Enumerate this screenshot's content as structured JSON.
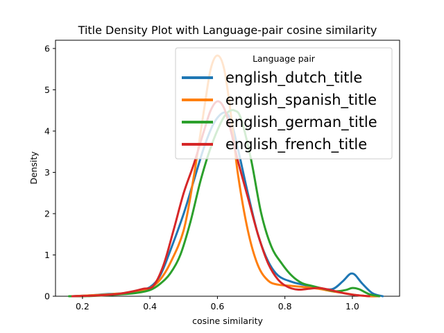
{
  "chart_data": {
    "type": "line",
    "title": "Title Density Plot with Language-pair cosine similarity",
    "xlabel": "cosine similarity",
    "ylabel": "Density",
    "xlim": [
      0.12,
      1.14
    ],
    "ylim": [
      0,
      6.2
    ],
    "x_ticks": [
      0.2,
      0.4,
      0.6,
      0.8,
      1.0
    ],
    "x_tick_labels": [
      "0.2",
      "0.4",
      "0.6",
      "0.8",
      "1.0"
    ],
    "y_ticks": [
      0,
      1,
      2,
      3,
      4,
      5,
      6
    ],
    "y_tick_labels": [
      "0",
      "1",
      "2",
      "3",
      "4",
      "5",
      "6"
    ],
    "grid": false,
    "legend": {
      "title": "Language pair",
      "placement": "upper-right"
    },
    "series": [
      {
        "name": "english_dutch_title",
        "color": "#1f77b4",
        "x": [
          0.17,
          0.22,
          0.27,
          0.3,
          0.33,
          0.36,
          0.4,
          0.43,
          0.46,
          0.5,
          0.53,
          0.56,
          0.59,
          0.62,
          0.64,
          0.66,
          0.69,
          0.72,
          0.75,
          0.78,
          0.82,
          0.86,
          0.9,
          0.94,
          0.97,
          0.99,
          1.0,
          1.01,
          1.03,
          1.06,
          1.09
        ],
        "y": [
          0.0,
          0.02,
          0.05,
          0.06,
          0.08,
          0.12,
          0.22,
          0.5,
          1.1,
          2.0,
          2.8,
          3.6,
          4.2,
          4.45,
          4.25,
          3.6,
          2.5,
          1.5,
          0.85,
          0.5,
          0.35,
          0.27,
          0.2,
          0.17,
          0.35,
          0.52,
          0.55,
          0.5,
          0.3,
          0.07,
          0.0
        ]
      },
      {
        "name": "english_spanish_title",
        "color": "#ff7f0e",
        "x": [
          0.17,
          0.22,
          0.27,
          0.3,
          0.33,
          0.36,
          0.4,
          0.43,
          0.46,
          0.5,
          0.53,
          0.56,
          0.58,
          0.6,
          0.62,
          0.64,
          0.66,
          0.69,
          0.72,
          0.75,
          0.78,
          0.82,
          0.86,
          0.9,
          0.94,
          0.98,
          1.0,
          1.02,
          1.05,
          1.08
        ],
        "y": [
          0.0,
          0.02,
          0.04,
          0.06,
          0.08,
          0.12,
          0.2,
          0.4,
          0.8,
          1.6,
          2.9,
          4.5,
          5.5,
          5.83,
          5.5,
          4.4,
          3.0,
          1.6,
          0.75,
          0.38,
          0.28,
          0.25,
          0.22,
          0.18,
          0.12,
          0.07,
          0.04,
          0.02,
          0.0,
          0.0
        ]
      },
      {
        "name": "english_german_title",
        "color": "#2ca02c",
        "x": [
          0.16,
          0.2,
          0.24,
          0.28,
          0.32,
          0.36,
          0.4,
          0.43,
          0.46,
          0.49,
          0.52,
          0.55,
          0.58,
          0.61,
          0.63,
          0.65,
          0.67,
          0.7,
          0.73,
          0.76,
          0.79,
          0.82,
          0.85,
          0.88,
          0.92,
          0.95,
          0.98,
          1.0,
          1.02,
          1.05,
          1.08
        ],
        "y": [
          0.0,
          0.0,
          0.01,
          0.03,
          0.05,
          0.08,
          0.15,
          0.3,
          0.55,
          1.0,
          1.8,
          2.8,
          3.6,
          4.2,
          4.45,
          4.5,
          4.3,
          3.3,
          2.0,
          1.2,
          0.8,
          0.5,
          0.32,
          0.25,
          0.17,
          0.12,
          0.15,
          0.2,
          0.17,
          0.05,
          0.0
        ]
      },
      {
        "name": "english_french_title",
        "color": "#d62728",
        "x": [
          0.17,
          0.22,
          0.27,
          0.31,
          0.35,
          0.38,
          0.41,
          0.44,
          0.47,
          0.5,
          0.53,
          0.56,
          0.58,
          0.6,
          0.62,
          0.64,
          0.66,
          0.69,
          0.72,
          0.75,
          0.78,
          0.81,
          0.84,
          0.87,
          0.9,
          0.93,
          0.96,
          0.99,
          1.02,
          1.05
        ],
        "y": [
          0.0,
          0.01,
          0.03,
          0.06,
          0.12,
          0.18,
          0.25,
          0.75,
          1.6,
          2.5,
          3.2,
          4.0,
          4.5,
          4.72,
          4.55,
          4.0,
          3.3,
          2.4,
          1.5,
          0.8,
          0.4,
          0.22,
          0.16,
          0.18,
          0.2,
          0.16,
          0.1,
          0.05,
          0.02,
          0.0
        ]
      }
    ]
  }
}
